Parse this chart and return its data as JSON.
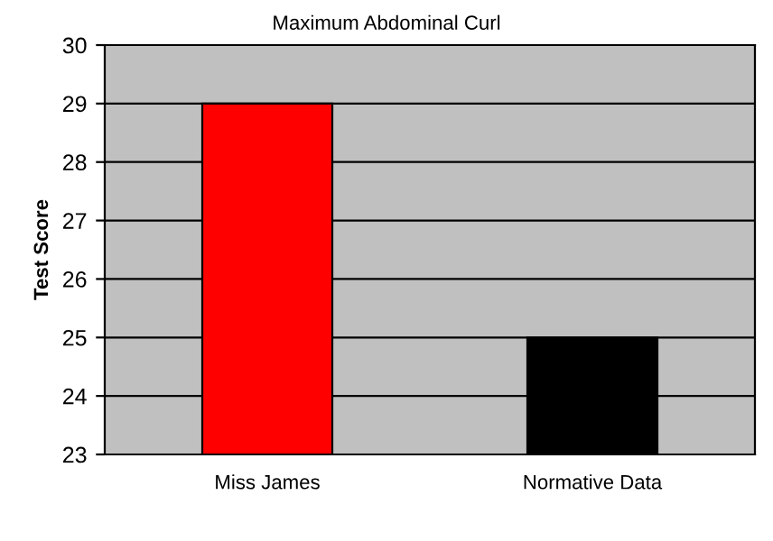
{
  "chart_data": {
    "type": "bar",
    "title": "Maximum Abdominal Curl",
    "ylabel": "Test Score",
    "categories": [
      "Miss James",
      "Normative Data"
    ],
    "values": [
      29,
      25
    ],
    "colors": [
      "#ff0000",
      "#000000"
    ],
    "ylim": [
      23,
      30
    ],
    "yticks": [
      23,
      24,
      25,
      26,
      27,
      28,
      29,
      30
    ],
    "grid": "y"
  }
}
